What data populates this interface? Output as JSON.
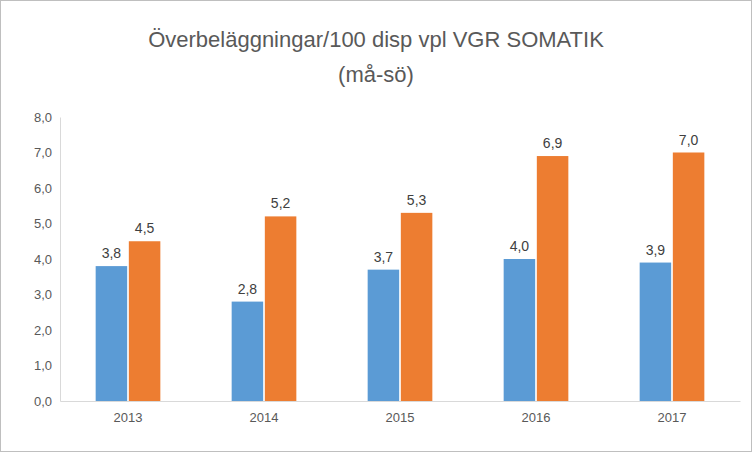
{
  "chart_data": {
    "type": "bar",
    "title": "Överbeläggningar/100 disp vpl VGR SOMATIK",
    "subtitle": "(må-sö)",
    "categories": [
      "2013",
      "2014",
      "2015",
      "2016",
      "2017"
    ],
    "series": [
      {
        "color": "#5b9bd5",
        "values": [
          3.8,
          2.8,
          3.7,
          4.0,
          3.9
        ],
        "value_labels": [
          "3,8",
          "2,8",
          "3,7",
          "4,0",
          "3,9"
        ]
      },
      {
        "color": "#ed7d31",
        "values": [
          4.5,
          5.2,
          5.3,
          6.9,
          7.0
        ],
        "value_labels": [
          "4,5",
          "5,2",
          "5,3",
          "6,9",
          "7,0"
        ]
      }
    ],
    "ylim": [
      0,
      8
    ],
    "yticks": [
      {
        "value": 0,
        "label": "0,0"
      },
      {
        "value": 1,
        "label": "1,0"
      },
      {
        "value": 2,
        "label": "2,0"
      },
      {
        "value": 3,
        "label": "3,0"
      },
      {
        "value": 4,
        "label": "4,0"
      },
      {
        "value": 5,
        "label": "5,0"
      },
      {
        "value": 6,
        "label": "6,0"
      },
      {
        "value": 7,
        "label": "7,0"
      },
      {
        "value": 8,
        "label": "8,0"
      }
    ],
    "grid": false,
    "data_labels": true
  }
}
